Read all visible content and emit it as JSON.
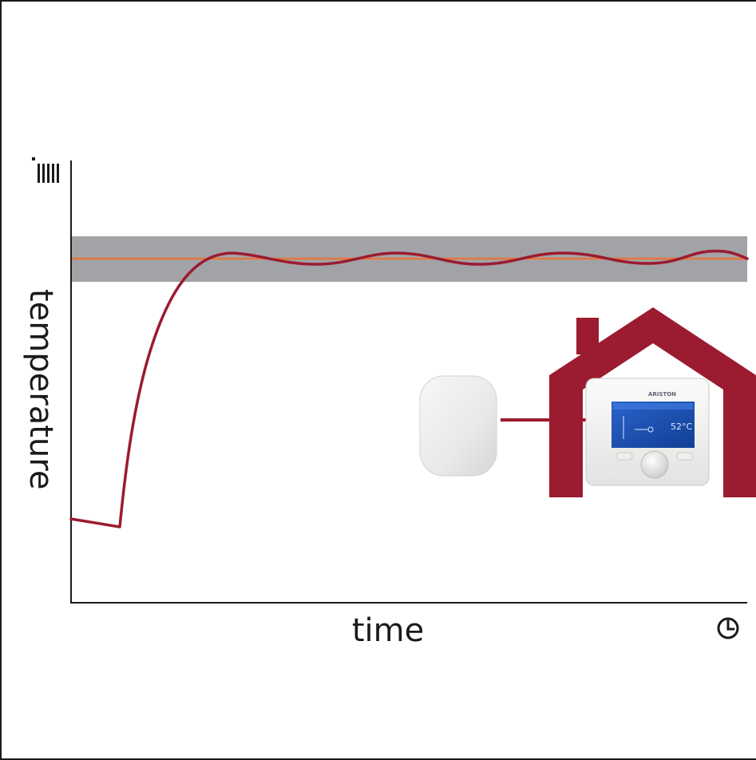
{
  "chart_data": {
    "type": "line",
    "xlabel": "time",
    "ylabel": "temperature",
    "series": [
      {
        "values": []
      },
      {
        "values": []
      }
    ]
  },
  "device": {
    "brand": "ARISTON",
    "screen_temperature": "52°C"
  },
  "icons": {
    "y_axis": "thermometer-bars-icon",
    "x_axis": "clock-icon",
    "house": "house-outline-icon",
    "sensor": "wireless-sensor-icon",
    "thermostat": "thermostat-device-icon"
  },
  "colors": {
    "band": "#a2a3a6",
    "setpoint": "#e8763a",
    "temperature": "#9b1b30",
    "house": "#9b1b30",
    "axis": "#1a1a1a"
  }
}
